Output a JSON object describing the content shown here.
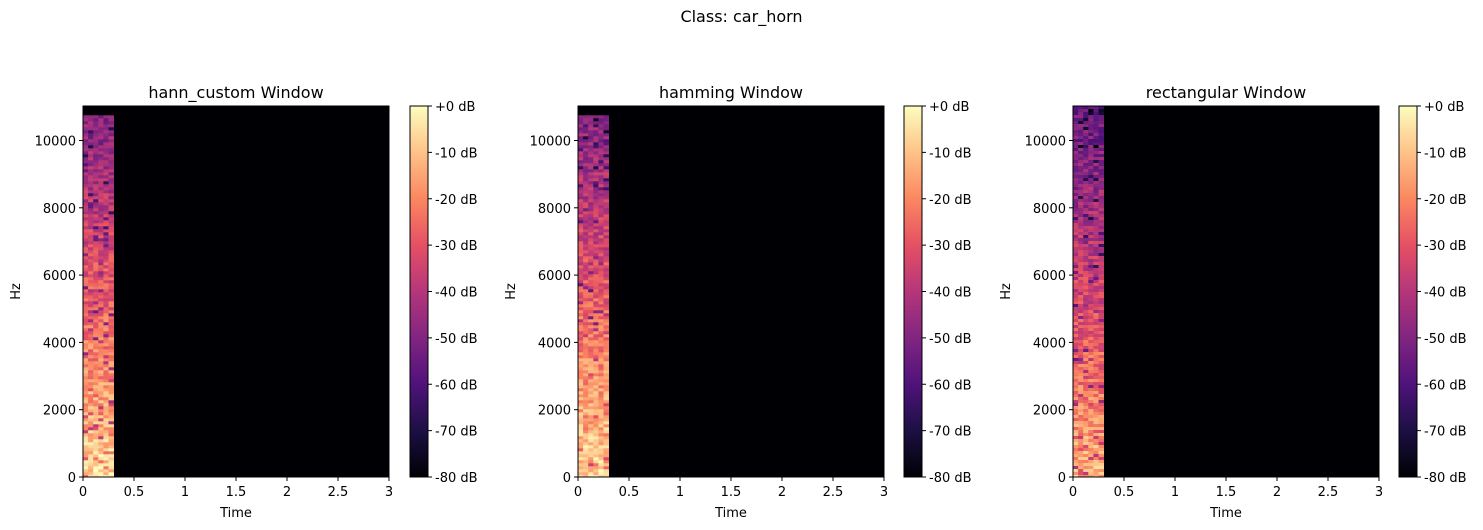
{
  "figure": {
    "suptitle": "Class: car_horn"
  },
  "colormap": {
    "name": "magma",
    "stops": [
      "#000004",
      "#1c1044",
      "#4f127b",
      "#812581",
      "#b5367a",
      "#e55064",
      "#fb8761",
      "#fec287",
      "#fcfdbf"
    ]
  },
  "chart_data": [
    {
      "type": "heatmap",
      "title": "hann_custom Window",
      "xlabel": "Time",
      "ylabel": "Hz",
      "xlim": [
        0,
        3
      ],
      "ylim": [
        0,
        11025
      ],
      "xticks": [
        0,
        0.5,
        1,
        1.5,
        2,
        2.5,
        3
      ],
      "xtick_labels": [
        "0",
        "0.5",
        "1",
        "1.5",
        "2",
        "2.5",
        "3"
      ],
      "yticks": [
        0,
        2000,
        4000,
        6000,
        8000,
        10000
      ],
      "ytick_labels": [
        "0",
        "2000",
        "4000",
        "6000",
        "8000",
        "10000"
      ],
      "signal_end_time": 0.3,
      "signal_top_hz": 10750,
      "colorbar": {
        "vmin": -80,
        "vmax": 0,
        "ticks": [
          0,
          -10,
          -20,
          -30,
          -40,
          -50,
          -60,
          -70,
          -80
        ],
        "tick_labels": [
          "+0 dB",
          "-10 dB",
          "-20 dB",
          "-30 dB",
          "-40 dB",
          "-50 dB",
          "-60 dB",
          "-70 dB",
          "-80 dB"
        ]
      }
    },
    {
      "type": "heatmap",
      "title": "hamming Window",
      "xlabel": "Time",
      "ylabel": "Hz",
      "xlim": [
        0,
        3
      ],
      "ylim": [
        0,
        11025
      ],
      "xticks": [
        0,
        0.5,
        1,
        1.5,
        2,
        2.5,
        3
      ],
      "xtick_labels": [
        "0",
        "0.5",
        "1",
        "1.5",
        "2",
        "2.5",
        "3"
      ],
      "yticks": [
        0,
        2000,
        4000,
        6000,
        8000,
        10000
      ],
      "ytick_labels": [
        "0",
        "2000",
        "4000",
        "6000",
        "8000",
        "10000"
      ],
      "signal_end_time": 0.3,
      "signal_top_hz": 10750,
      "colorbar": {
        "vmin": -80,
        "vmax": 0,
        "ticks": [
          0,
          -10,
          -20,
          -30,
          -40,
          -50,
          -60,
          -70,
          -80
        ],
        "tick_labels": [
          "+0 dB",
          "-10 dB",
          "-20 dB",
          "-30 dB",
          "-40 dB",
          "-50 dB",
          "-60 dB",
          "-70 dB",
          "-80 dB"
        ]
      }
    },
    {
      "type": "heatmap",
      "title": "rectangular Window",
      "xlabel": "Time",
      "ylabel": "Hz",
      "xlim": [
        0,
        3
      ],
      "ylim": [
        0,
        11025
      ],
      "xticks": [
        0,
        0.5,
        1,
        1.5,
        2,
        2.5,
        3
      ],
      "xtick_labels": [
        "0",
        "0.5",
        "1",
        "1.5",
        "2",
        "2.5",
        "3"
      ],
      "yticks": [
        0,
        2000,
        4000,
        6000,
        8000,
        10000
      ],
      "ytick_labels": [
        "0",
        "2000",
        "4000",
        "6000",
        "8000",
        "10000"
      ],
      "signal_end_time": 0.3,
      "signal_top_hz": 11025,
      "colorbar": {
        "vmin": -80,
        "vmax": 0,
        "ticks": [
          0,
          -10,
          -20,
          -30,
          -40,
          -50,
          -60,
          -70,
          -80
        ],
        "tick_labels": [
          "+0 dB",
          "-10 dB",
          "-20 dB",
          "-30 dB",
          "-40 dB",
          "-50 dB",
          "-60 dB",
          "-70 dB",
          "-80 dB"
        ]
      }
    }
  ]
}
